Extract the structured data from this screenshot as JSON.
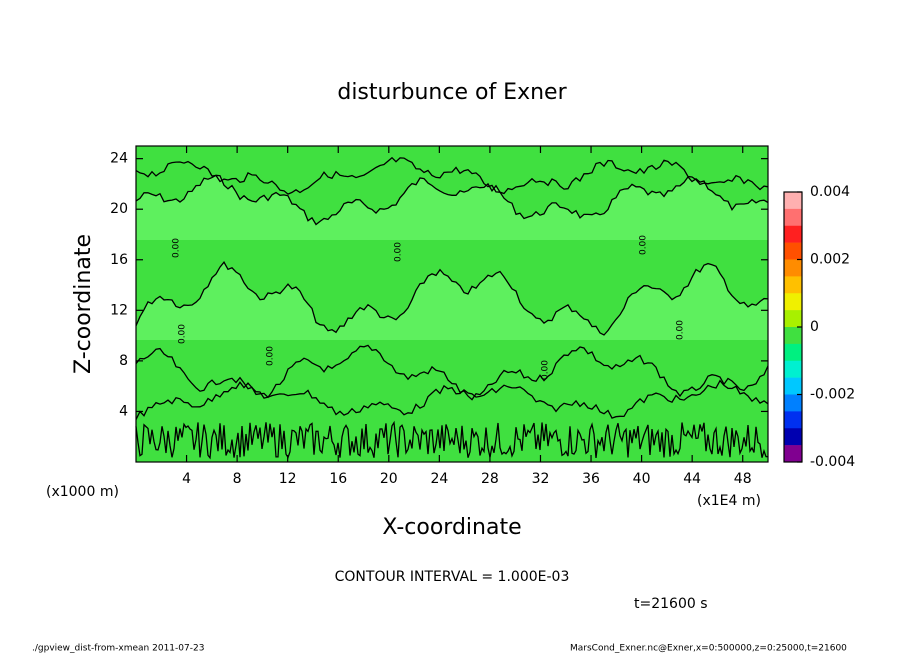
{
  "chart_data": {
    "type": "contour",
    "title": "disturbunce of Exner",
    "x_label": "X-coordinate",
    "y_label": "Z-coordinate",
    "x_unit": "(x1E4 m)",
    "y_unit": "(x1000 m)",
    "xlim": [
      0,
      50
    ],
    "ylim": [
      0,
      25
    ],
    "xticks": [
      4,
      8,
      12,
      16,
      20,
      24,
      28,
      32,
      36,
      40,
      44,
      48
    ],
    "yticks": [
      4,
      8,
      12,
      16,
      20,
      24
    ],
    "contour_label": "0.00",
    "contour_interval": "CONTOUR INTERVAL = 1.000E-03",
    "time": "t=21600 s",
    "footer_left": "./gpview_dist-from-xmean  2011-07-23",
    "footer_right": "MarsCond_Exner.nc@Exner,x=0:500000,z=0:25000,t=21600",
    "colorbar": {
      "lim": [
        -0.004,
        0.004
      ],
      "ticks": [
        0.004,
        0.002,
        0,
        -0.002,
        -0.004
      ],
      "colors": [
        "#ffb0b0",
        "#ff7070",
        "#ff2020",
        "#ff5000",
        "#ff8c00",
        "#ffc000",
        "#f0f000",
        "#a8f000",
        "#40e040",
        "#00f080",
        "#00f0d0",
        "#00c8ff",
        "#0080ff",
        "#0030f0",
        "#0000b0",
        "#800090"
      ]
    }
  }
}
